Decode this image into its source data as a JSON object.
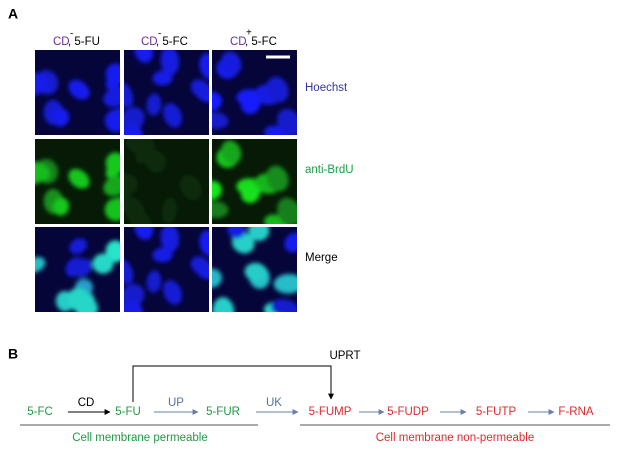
{
  "panel_a": {
    "label": "A",
    "columns": [
      {
        "name": "CD",
        "sign": "-",
        "drug": ", 5-FU"
      },
      {
        "name": "CD",
        "sign": "-",
        "drug": ", 5-FC"
      },
      {
        "name": "CD",
        "sign": "+",
        "drug": ", 5-FC"
      }
    ],
    "rows": [
      "Hoechst",
      "anti-BrdU",
      "Merge"
    ]
  },
  "panel_b": {
    "label": "B",
    "nodes": [
      "5-FC",
      "5-FU",
      "5-FUR",
      "5-FUMP",
      "5-FUDP",
      "5-FUTP",
      "F-RNA"
    ],
    "enzymes": [
      "CD",
      "UP",
      "UK",
      "UPRT"
    ],
    "membrane": {
      "permeable": "Cell membrane permeable",
      "non_permeable": "Cell membrane non-permeable"
    }
  }
}
